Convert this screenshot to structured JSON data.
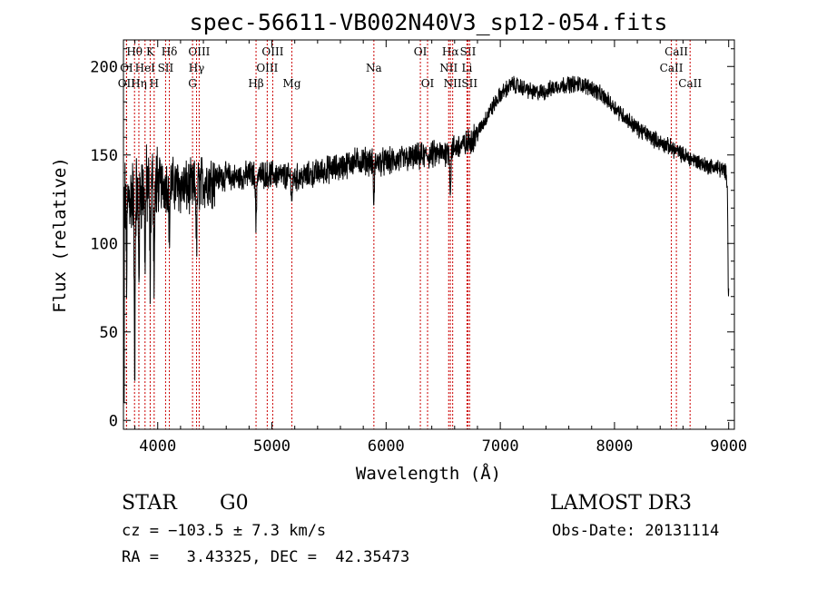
{
  "chart_data": {
    "type": "line",
    "title": "spec-56611-VB002N40V3_sp12-054.fits",
    "xlabel": "Wavelength (Å)",
    "ylabel": "Flux (relative)",
    "xlim": [
      3700,
      9050
    ],
    "ylim": [
      -5,
      215
    ],
    "xticks": [
      4000,
      5000,
      6000,
      7000,
      8000,
      9000
    ],
    "yticks": [
      0,
      50,
      100,
      150,
      200
    ],
    "xtick_labels": [
      "4000",
      "5000",
      "6000",
      "7000",
      "8000",
      "9000"
    ],
    "ytick_labels": [
      "0",
      "50",
      "100",
      "150",
      "200"
    ],
    "continuum": [
      [
        3700,
        125
      ],
      [
        3800,
        128
      ],
      [
        3900,
        132
      ],
      [
        4000,
        133
      ],
      [
        4100,
        134
      ],
      [
        4200,
        132
      ],
      [
        4300,
        131
      ],
      [
        4400,
        135
      ],
      [
        4500,
        137
      ],
      [
        4600,
        138
      ],
      [
        4700,
        137
      ],
      [
        4800,
        139
      ],
      [
        4900,
        139
      ],
      [
        5000,
        139
      ],
      [
        5100,
        138
      ],
      [
        5200,
        137
      ],
      [
        5300,
        138
      ],
      [
        5400,
        140
      ],
      [
        5500,
        142
      ],
      [
        5600,
        143
      ],
      [
        5700,
        146
      ],
      [
        5800,
        147
      ],
      [
        5900,
        146
      ],
      [
        6000,
        146
      ],
      [
        6100,
        147
      ],
      [
        6200,
        148
      ],
      [
        6300,
        149
      ],
      [
        6400,
        150
      ],
      [
        6500,
        151
      ],
      [
        6600,
        154
      ],
      [
        6700,
        156
      ],
      [
        6800,
        162
      ],
      [
        6900,
        174
      ],
      [
        7000,
        184
      ],
      [
        7100,
        190
      ],
      [
        7200,
        188
      ],
      [
        7300,
        185
      ],
      [
        7400,
        186
      ],
      [
        7500,
        189
      ],
      [
        7600,
        190
      ],
      [
        7700,
        190
      ],
      [
        7800,
        188
      ],
      [
        7900,
        183
      ],
      [
        8000,
        177
      ],
      [
        8100,
        171
      ],
      [
        8200,
        165
      ],
      [
        8300,
        161
      ],
      [
        8400,
        157
      ],
      [
        8500,
        154
      ],
      [
        8600,
        150
      ],
      [
        8700,
        147
      ],
      [
        8800,
        144
      ],
      [
        8900,
        143
      ],
      [
        8980,
        140
      ],
      [
        9000,
        125
      ]
    ],
    "absorption_dips": [
      {
        "lambda": 3728,
        "depth": 40
      },
      {
        "lambda": 3798,
        "depth": 95
      },
      {
        "lambda": 3835,
        "depth": 45
      },
      {
        "lambda": 3889,
        "depth": 35
      },
      {
        "lambda": 3934,
        "depth": 50
      },
      {
        "lambda": 3969,
        "depth": 45
      },
      {
        "lambda": 4102,
        "depth": 30
      },
      {
        "lambda": 4340,
        "depth": 35
      },
      {
        "lambda": 4861,
        "depth": 30
      },
      {
        "lambda": 5175,
        "depth": 12
      },
      {
        "lambda": 5893,
        "depth": 25
      },
      {
        "lambda": 6563,
        "depth": 25
      },
      {
        "lambda": 8998,
        "depth": 55
      }
    ],
    "line_markers": [
      {
        "label": "Hθ",
        "lambda": 3797,
        "row": 0
      },
      {
        "label": "K",
        "lambda": 3934,
        "row": 0
      },
      {
        "label": "Hδ",
        "lambda": 4102,
        "row": 0
      },
      {
        "label": "OIII",
        "lambda": 4363,
        "row": 0
      },
      {
        "label": "OIII",
        "lambda": 5007,
        "row": 0
      },
      {
        "label": "OI",
        "lambda": 6300,
        "row": 0
      },
      {
        "label": "Hα",
        "lambda": 6563,
        "row": 0
      },
      {
        "label": "SII",
        "lambda": 6717,
        "row": 0
      },
      {
        "label": "CaII",
        "lambda": 8542,
        "row": 0
      },
      {
        "label": "OI",
        "lambda": 3727,
        "row": 1
      },
      {
        "label": "HeI",
        "lambda": 3889,
        "row": 1
      },
      {
        "label": "SII",
        "lambda": 4069,
        "row": 1
      },
      {
        "label": "Hγ",
        "lambda": 4340,
        "row": 1
      },
      {
        "label": "OIII",
        "lambda": 4959,
        "row": 1
      },
      {
        "label": "Na",
        "lambda": 5893,
        "row": 1
      },
      {
        "label": "NII",
        "lambda": 6548,
        "row": 1
      },
      {
        "label": "Li",
        "lambda": 6708,
        "row": 1
      },
      {
        "label": "CaII",
        "lambda": 8498,
        "row": 1
      },
      {
        "label": "OII",
        "lambda": 3727,
        "row": 2
      },
      {
        "label": "Hη",
        "lambda": 3835,
        "row": 2
      },
      {
        "label": "H",
        "lambda": 3969,
        "row": 2
      },
      {
        "label": "G",
        "lambda": 4305,
        "row": 2
      },
      {
        "label": "Hβ",
        "lambda": 4861,
        "row": 2
      },
      {
        "label": "Mg",
        "lambda": 5175,
        "row": 2
      },
      {
        "label": "OI",
        "lambda": 6363,
        "row": 2
      },
      {
        "label": "NII",
        "lambda": 6583,
        "row": 2
      },
      {
        "label": "SII",
        "lambda": 6731,
        "row": 2
      },
      {
        "label": "CaII",
        "lambda": 8662,
        "row": 2
      }
    ],
    "marker_color": "#cc0000",
    "series_color": "#000000"
  },
  "info": {
    "class": "STAR",
    "subclass": "G0",
    "survey": "LAMOST DR3",
    "cz": "cz = −103.5 ± 7.3 km/s",
    "obs_date": "Obs-Date: 20131114",
    "coords": "RA =   3.43325, DEC =  42.35473"
  }
}
